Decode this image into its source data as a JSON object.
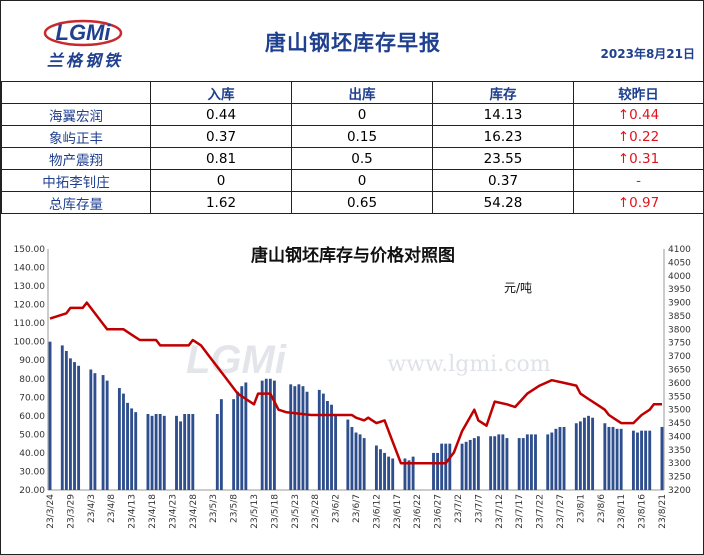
{
  "brand": {
    "logo_text": "LGMi",
    "tagline": "兰格钢铁",
    "watermark_logo": "LGMi",
    "watermark_url": "www.lgmi.com",
    "colors": {
      "brand_blue": "#1f3f8f",
      "up_red": "#e0141e",
      "bar_blue": "#2e4e8e",
      "line_red": "#c00000"
    }
  },
  "header": {
    "title": "唐山钢坯库存早报",
    "date": "2023年8月21日"
  },
  "table": {
    "columns": [
      "",
      "入库",
      "出库",
      "库存",
      "较昨日"
    ],
    "rows": [
      {
        "name": "海翼宏润",
        "in": "0.44",
        "out": "0",
        "stock": "14.13",
        "change": "↑0.44",
        "trend": "up"
      },
      {
        "name": "象屿正丰",
        "in": "0.37",
        "out": "0.15",
        "stock": "16.23",
        "change": "↑0.22",
        "trend": "up"
      },
      {
        "name": "物产震翔",
        "in": "0.81",
        "out": "0.5",
        "stock": "23.55",
        "change": "↑0.31",
        "trend": "up"
      },
      {
        "name": "中拓李钊庄",
        "in": "0",
        "out": "0",
        "stock": "0.37",
        "change": "-",
        "trend": "flat"
      },
      {
        "name": "总库存量",
        "in": "1.62",
        "out": "0.65",
        "stock": "54.28",
        "change": "↑0.97",
        "trend": "up"
      }
    ]
  },
  "chart_data": {
    "type": "bar",
    "title": "唐山钢坯库存与价格对照图",
    "unit_label": "元/吨",
    "y_left": {
      "min": 20,
      "max": 150,
      "step": 10,
      "format": "0.00"
    },
    "y_right": {
      "min": 3200,
      "max": 4100,
      "step": 50
    },
    "x_tick_labels": [
      "23/3/24",
      "23/3/29",
      "23/4/3",
      "23/4/8",
      "23/4/13",
      "23/4/18",
      "23/4/23",
      "23/4/28",
      "23/5/3",
      "23/5/8",
      "23/5/13",
      "23/5/18",
      "23/5/23",
      "23/5/28",
      "23/6/2",
      "23/6/7",
      "23/6/12",
      "23/6/17",
      "23/6/22",
      "23/6/27",
      "23/7/2",
      "23/7/7",
      "23/7/12",
      "23/7/17",
      "23/7/22",
      "23/7/27",
      "23/8/1",
      "23/8/6",
      "23/8/11",
      "23/8/16",
      "23/8/21"
    ],
    "start_date": "2023-03-24",
    "day_step": 5,
    "series": [
      {
        "name": "库存",
        "axis": "left",
        "kind": "bar",
        "data": [
          [
            "2023-03-24",
            100
          ],
          [
            "2023-03-27",
            98
          ],
          [
            "2023-03-28",
            95
          ],
          [
            "2023-03-29",
            91
          ],
          [
            "2023-03-30",
            89
          ],
          [
            "2023-03-31",
            87
          ],
          [
            "2023-04-03",
            85
          ],
          [
            "2023-04-04",
            83
          ],
          [
            "2023-04-06",
            82
          ],
          [
            "2023-04-07",
            79
          ],
          [
            "2023-04-10",
            75
          ],
          [
            "2023-04-11",
            72
          ],
          [
            "2023-04-12",
            67
          ],
          [
            "2023-04-13",
            64
          ],
          [
            "2023-04-14",
            62
          ],
          [
            "2023-04-17",
            61
          ],
          [
            "2023-04-18",
            60
          ],
          [
            "2023-04-19",
            61
          ],
          [
            "2023-04-20",
            61
          ],
          [
            "2023-04-21",
            60
          ],
          [
            "2023-04-24",
            60
          ],
          [
            "2023-04-25",
            57
          ],
          [
            "2023-04-26",
            61
          ],
          [
            "2023-04-27",
            61
          ],
          [
            "2023-04-28",
            61
          ],
          [
            "2023-05-04",
            61
          ],
          [
            "2023-05-05",
            69
          ],
          [
            "2023-05-08",
            69
          ],
          [
            "2023-05-09",
            73
          ],
          [
            "2023-05-10",
            76
          ],
          [
            "2023-05-11",
            78
          ],
          [
            "2023-05-15",
            79
          ],
          [
            "2023-05-16",
            80
          ],
          [
            "2023-05-17",
            80
          ],
          [
            "2023-05-18",
            79
          ],
          [
            "2023-05-22",
            77
          ],
          [
            "2023-05-23",
            76
          ],
          [
            "2023-05-24",
            77
          ],
          [
            "2023-05-25",
            76
          ],
          [
            "2023-05-26",
            73
          ],
          [
            "2023-05-29",
            74
          ],
          [
            "2023-05-30",
            72
          ],
          [
            "2023-05-31",
            68
          ],
          [
            "2023-06-01",
            66
          ],
          [
            "2023-06-02",
            61
          ],
          [
            "2023-06-05",
            58
          ],
          [
            "2023-06-06",
            54
          ],
          [
            "2023-06-07",
            51
          ],
          [
            "2023-06-08",
            50
          ],
          [
            "2023-06-09",
            48
          ],
          [
            "2023-06-12",
            44
          ],
          [
            "2023-06-13",
            42
          ],
          [
            "2023-06-14",
            40
          ],
          [
            "2023-06-15",
            38
          ],
          [
            "2023-06-16",
            37
          ],
          [
            "2023-06-19",
            37
          ],
          [
            "2023-06-20",
            36
          ],
          [
            "2023-06-21",
            38
          ],
          [
            "2023-06-26",
            40
          ],
          [
            "2023-06-27",
            40
          ],
          [
            "2023-06-28",
            45
          ],
          [
            "2023-06-29",
            45
          ],
          [
            "2023-06-30",
            45
          ],
          [
            "2023-07-03",
            45
          ],
          [
            "2023-07-04",
            46
          ],
          [
            "2023-07-05",
            47
          ],
          [
            "2023-07-06",
            48
          ],
          [
            "2023-07-07",
            49
          ],
          [
            "2023-07-10",
            49
          ],
          [
            "2023-07-11",
            49
          ],
          [
            "2023-07-12",
            50
          ],
          [
            "2023-07-13",
            50
          ],
          [
            "2023-07-14",
            48
          ],
          [
            "2023-07-17",
            48
          ],
          [
            "2023-07-18",
            48
          ],
          [
            "2023-07-19",
            50
          ],
          [
            "2023-07-20",
            50
          ],
          [
            "2023-07-21",
            50
          ],
          [
            "2023-07-24",
            50
          ],
          [
            "2023-07-25",
            51
          ],
          [
            "2023-07-26",
            53
          ],
          [
            "2023-07-27",
            54
          ],
          [
            "2023-07-28",
            54
          ],
          [
            "2023-07-31",
            56
          ],
          [
            "2023-08-01",
            57
          ],
          [
            "2023-08-02",
            59
          ],
          [
            "2023-08-03",
            60
          ],
          [
            "2023-08-04",
            59
          ],
          [
            "2023-08-07",
            56
          ],
          [
            "2023-08-08",
            54
          ],
          [
            "2023-08-09",
            54
          ],
          [
            "2023-08-10",
            53
          ],
          [
            "2023-08-11",
            53
          ],
          [
            "2023-08-14",
            52
          ],
          [
            "2023-08-15",
            51
          ],
          [
            "2023-08-16",
            52
          ],
          [
            "2023-08-17",
            52
          ],
          [
            "2023-08-18",
            52
          ],
          [
            "2023-08-21",
            54
          ]
        ]
      },
      {
        "name": "价格",
        "axis": "right",
        "kind": "line",
        "data": [
          [
            "2023-03-24",
            3840
          ],
          [
            "2023-03-26",
            3850
          ],
          [
            "2023-03-28",
            3860
          ],
          [
            "2023-03-29",
            3880
          ],
          [
            "2023-04-01",
            3880
          ],
          [
            "2023-04-02",
            3900
          ],
          [
            "2023-04-04",
            3860
          ],
          [
            "2023-04-06",
            3820
          ],
          [
            "2023-04-07",
            3800
          ],
          [
            "2023-04-11",
            3800
          ],
          [
            "2023-04-13",
            3780
          ],
          [
            "2023-04-15",
            3760
          ],
          [
            "2023-04-19",
            3760
          ],
          [
            "2023-04-20",
            3740
          ],
          [
            "2023-04-21",
            3740
          ],
          [
            "2023-04-24",
            3740
          ],
          [
            "2023-04-27",
            3740
          ],
          [
            "2023-04-28",
            3760
          ],
          [
            "2023-04-30",
            3740
          ],
          [
            "2023-05-02",
            3700
          ],
          [
            "2023-05-06",
            3620
          ],
          [
            "2023-05-09",
            3560
          ],
          [
            "2023-05-11",
            3540
          ],
          [
            "2023-05-13",
            3520
          ],
          [
            "2023-05-14",
            3560
          ],
          [
            "2023-05-17",
            3560
          ],
          [
            "2023-05-19",
            3500
          ],
          [
            "2023-05-21",
            3490
          ],
          [
            "2023-05-27",
            3480
          ],
          [
            "2023-06-02",
            3480
          ],
          [
            "2023-06-05",
            3480
          ],
          [
            "2023-06-06",
            3480
          ],
          [
            "2023-06-07",
            3470
          ],
          [
            "2023-06-09",
            3460
          ],
          [
            "2023-06-10",
            3470
          ],
          [
            "2023-06-11",
            3460
          ],
          [
            "2023-06-12",
            3450
          ],
          [
            "2023-06-14",
            3460
          ],
          [
            "2023-06-15",
            3420
          ],
          [
            "2023-06-16",
            3380
          ],
          [
            "2023-06-18",
            3300
          ],
          [
            "2023-06-27",
            3300
          ],
          [
            "2023-06-29",
            3300
          ],
          [
            "2023-07-01",
            3340
          ],
          [
            "2023-07-03",
            3420
          ],
          [
            "2023-07-06",
            3500
          ],
          [
            "2023-07-07",
            3460
          ],
          [
            "2023-07-09",
            3440
          ],
          [
            "2023-07-11",
            3530
          ],
          [
            "2023-07-14",
            3520
          ],
          [
            "2023-07-16",
            3510
          ],
          [
            "2023-07-19",
            3560
          ],
          [
            "2023-07-22",
            3590
          ],
          [
            "2023-07-25",
            3610
          ],
          [
            "2023-07-28",
            3600
          ],
          [
            "2023-07-31",
            3590
          ],
          [
            "2023-08-01",
            3560
          ],
          [
            "2023-08-03",
            3540
          ],
          [
            "2023-08-05",
            3520
          ],
          [
            "2023-08-07",
            3500
          ],
          [
            "2023-08-08",
            3480
          ],
          [
            "2023-08-10",
            3460
          ],
          [
            "2023-08-11",
            3450
          ],
          [
            "2023-08-13",
            3450
          ],
          [
            "2023-08-14",
            3450
          ],
          [
            "2023-08-16",
            3480
          ],
          [
            "2023-08-18",
            3500
          ],
          [
            "2023-08-19",
            3520
          ],
          [
            "2023-08-21",
            3520
          ]
        ]
      }
    ]
  }
}
